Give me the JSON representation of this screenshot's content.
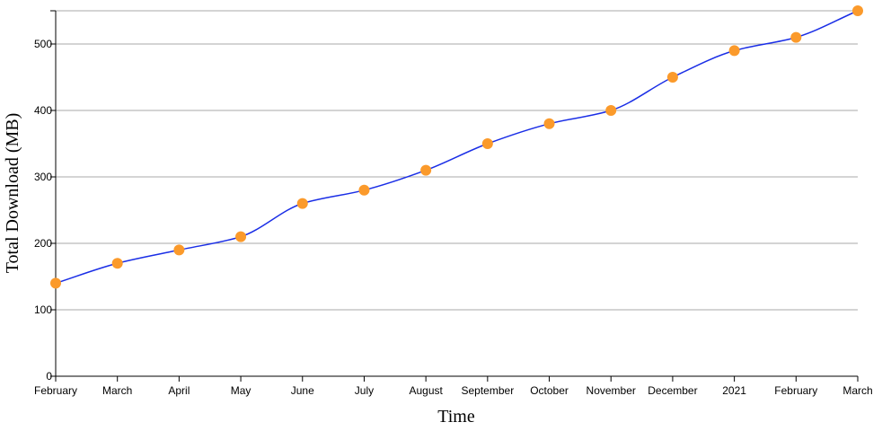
{
  "chart_data": {
    "type": "line",
    "xlabel": "Time",
    "ylabel": "Total Download (MB)",
    "x": [
      "February",
      "March",
      "April",
      "May",
      "June",
      "July",
      "August",
      "September",
      "October",
      "November",
      "December",
      "2021",
      "February",
      "March"
    ],
    "series": [
      {
        "values": [
          140,
          170,
          190,
          210,
          260,
          280,
          310,
          350,
          380,
          400,
          450,
          490,
          510,
          550
        ]
      }
    ],
    "yticks": [
      0,
      100,
      200,
      300,
      400,
      500
    ],
    "ylim": [
      0,
      550
    ],
    "grid": "horizontal",
    "line_color": "#1a2ee6",
    "marker_color": "#fb9a2b"
  }
}
